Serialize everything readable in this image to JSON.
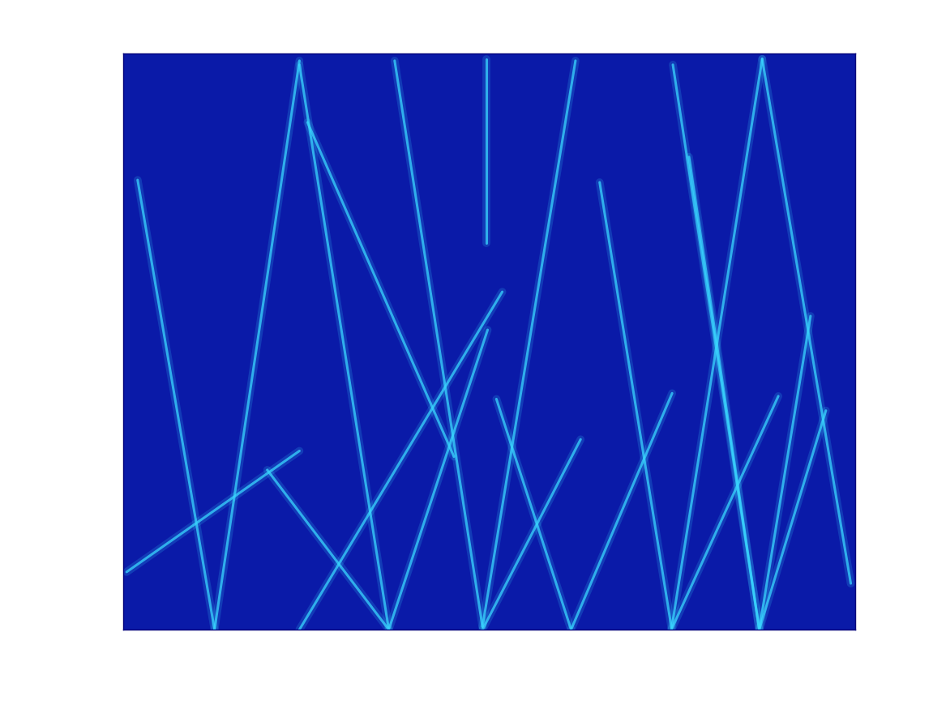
{
  "chart_data": {
    "type": "line",
    "tick_labels": false,
    "color": "#3ad6ff",
    "xlim": [
      0,
      100
    ],
    "ylim": [
      0,
      100
    ],
    "series": [
      {
        "x": [
          12.5,
          2.0
        ],
        "values": [
          0,
          78
        ]
      },
      {
        "x": [
          12.5,
          24.1
        ],
        "values": [
          0,
          98.7
        ]
      },
      {
        "x": [
          24.1,
          36.3
        ],
        "values": [
          98,
          0
        ]
      },
      {
        "x": [
          37.1,
          49.1
        ],
        "values": [
          98.7,
          0.5
        ]
      },
      {
        "x": [
          61.8,
          49.1
        ],
        "values": [
          98.7,
          0.5
        ]
      },
      {
        "x": [
          49.6,
          49.6
        ],
        "values": [
          99,
          67
        ]
      },
      {
        "x": [
          65.1,
          74.9
        ],
        "values": [
          77.6,
          0.4
        ]
      },
      {
        "x": [
          87.3,
          74.9
        ],
        "values": [
          99,
          0
        ]
      },
      {
        "x": [
          87.3,
          99.4
        ],
        "values": [
          99,
          8
        ]
      },
      {
        "x": [
          75.1,
          86.9
        ],
        "values": [
          98,
          0
        ]
      },
      {
        "x": [
          77.3,
          86.9
        ],
        "values": [
          82,
          0
        ]
      },
      {
        "x": [
          89.5,
          74.9
        ],
        "values": [
          40.5,
          0
        ]
      },
      {
        "x": [
          93.9,
          86.9
        ],
        "values": [
          54.4,
          0
        ]
      },
      {
        "x": [
          61.2,
          75.0
        ],
        "values": [
          0,
          41
        ]
      },
      {
        "x": [
          36.3,
          19.7
        ],
        "values": [
          0,
          27.7
        ]
      },
      {
        "x": [
          24.1,
          51.8
        ],
        "values": [
          0,
          58.6
        ]
      },
      {
        "x": [
          36.3,
          49.8
        ],
        "values": [
          0,
          52
        ]
      },
      {
        "x": [
          24.1,
          0.5
        ],
        "values": [
          31,
          10
        ]
      },
      {
        "x": [
          25.2,
          45.2
        ],
        "values": [
          88,
          30
        ]
      },
      {
        "x": [
          61.2,
          51.0
        ],
        "values": [
          0,
          40
        ]
      },
      {
        "x": [
          49.1,
          62.5
        ],
        "values": [
          0,
          33
        ]
      },
      {
        "x": [
          86.9,
          96.0
        ],
        "values": [
          0,
          38
        ]
      }
    ]
  }
}
